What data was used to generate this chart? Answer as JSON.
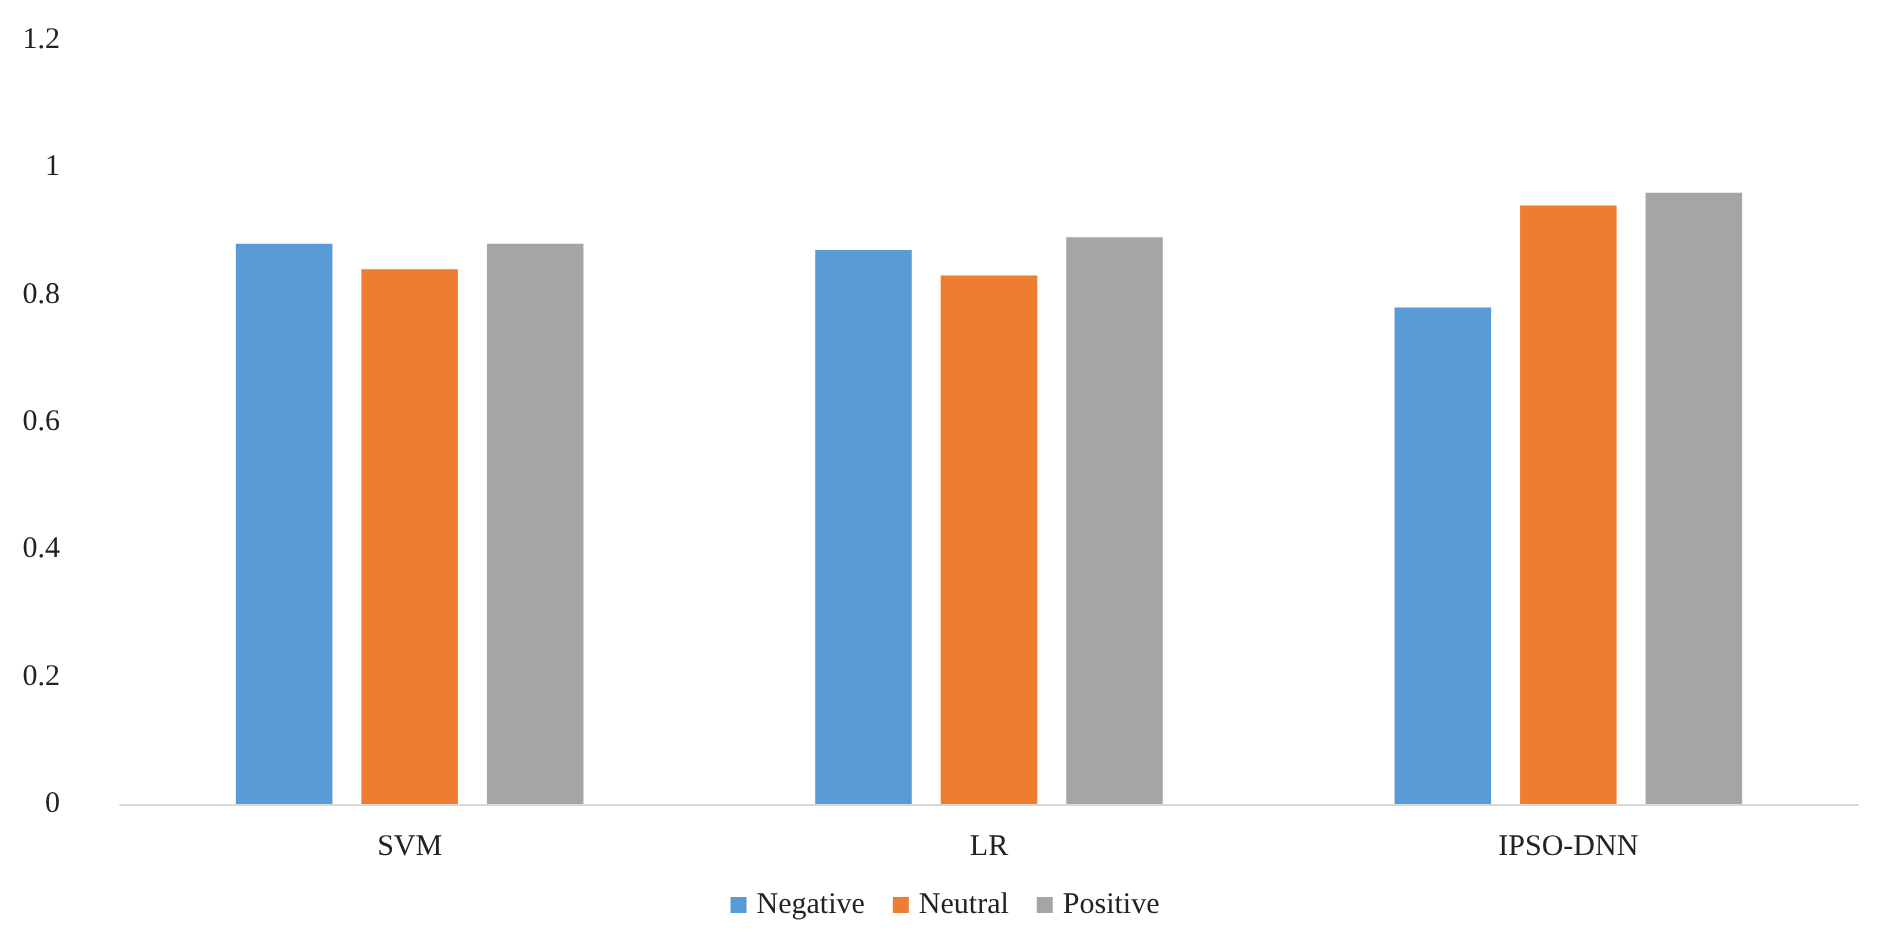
{
  "chart_data": {
    "type": "bar",
    "categories": [
      "SVM",
      "LR",
      "IPSO-DNN"
    ],
    "series": [
      {
        "name": "Negative",
        "color": "#5b9bd5",
        "values": [
          0.88,
          0.87,
          0.78
        ]
      },
      {
        "name": "Neutral",
        "color": "#ed7d31",
        "values": [
          0.84,
          0.83,
          0.94
        ]
      },
      {
        "name": "Positive",
        "color": "#a5a5a5",
        "values": [
          0.88,
          0.89,
          0.96
        ]
      }
    ],
    "ylim": [
      0,
      1.2
    ],
    "yticks": [
      0,
      0.2,
      0.4,
      0.6,
      0.8,
      1,
      1.2
    ],
    "grid": false,
    "legend": "bottom"
  }
}
